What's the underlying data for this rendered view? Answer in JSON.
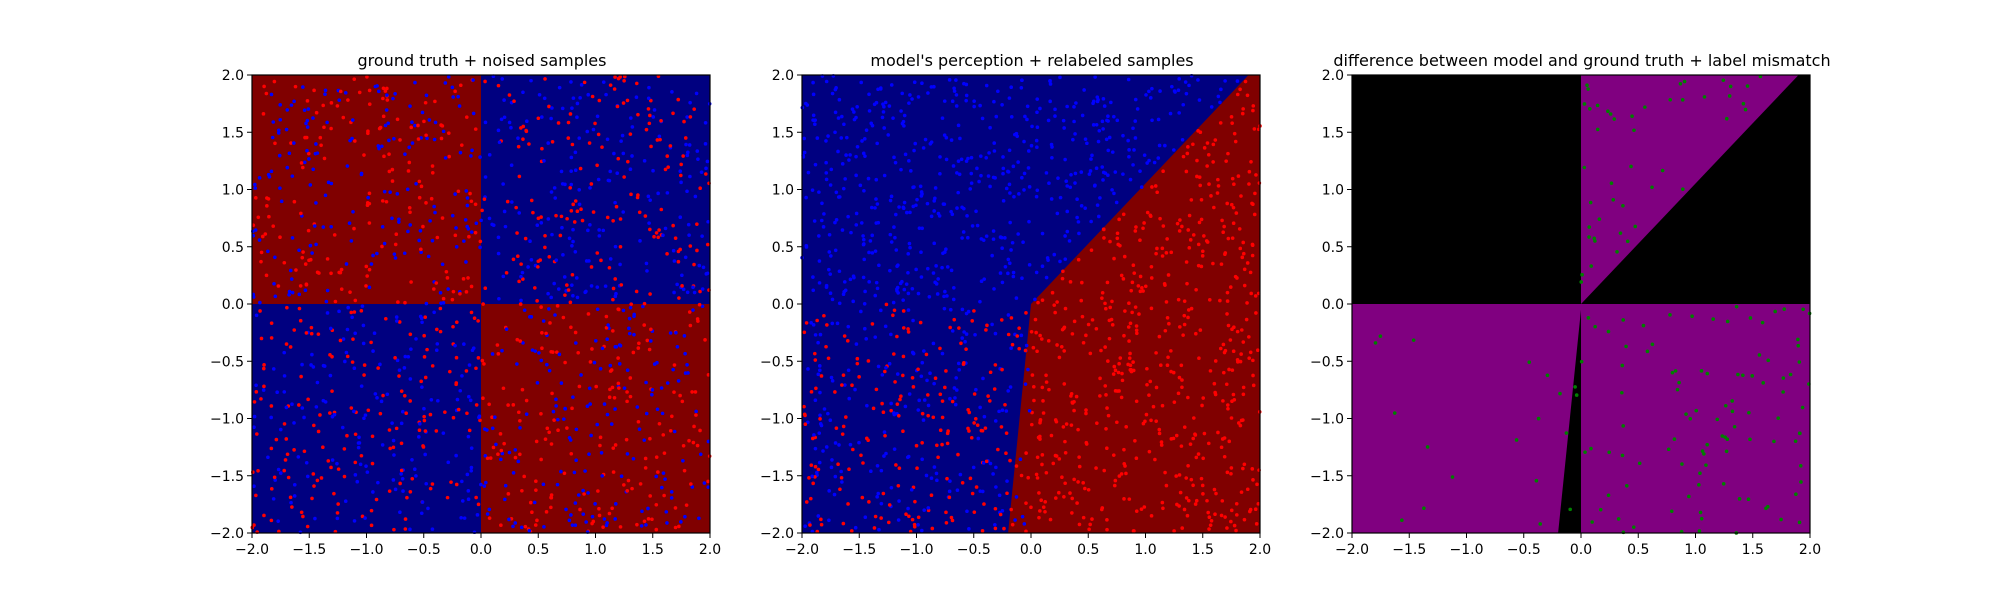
{
  "figure": {
    "background": "#ffffff"
  },
  "colors": {
    "ground_red": "#800000",
    "ground_blue": "#000080",
    "point_red": "#ff0000",
    "point_blue": "#0000ff",
    "diff_black": "#000000",
    "diff_purple": "#800080",
    "point_green": "#008000"
  },
  "chart_data": [
    {
      "type": "scatter",
      "title": "ground truth + noised samples",
      "xlabel": "",
      "ylabel": "",
      "xlim": [
        -2.0,
        2.0
      ],
      "ylim": [
        -2.0,
        2.0
      ],
      "xticks": [
        "−2.0",
        "−1.5",
        "−1.0",
        "−0.5",
        "0.0",
        "0.5",
        "1.0",
        "1.5",
        "2.0"
      ],
      "yticks": [
        "−2.0",
        "−1.5",
        "−1.0",
        "−0.5",
        "0.0",
        "0.5",
        "1.0",
        "1.5",
        "2.0"
      ],
      "grid": false,
      "background": "XOR quadrant map: red where x<0,y>0 and x>0,y<0; blue where x>0,y>0 and x<0,y<0",
      "series": [
        {
          "color": "#ff0000",
          "approx_count": 700,
          "distribution": "uniform over [-2,2]², mostly in blue quadrants (label red, noised)"
        },
        {
          "color": "#0000ff",
          "approx_count": 700,
          "distribution": "uniform over [-2,2]², mostly in red quadrants (label blue, noised)"
        }
      ]
    },
    {
      "type": "scatter",
      "title": "model's perception + relabeled samples",
      "xlabel": "",
      "ylabel": "",
      "xlim": [
        -2.0,
        2.0
      ],
      "ylim": [
        -2.0,
        2.0
      ],
      "xticks": [
        "−2.0",
        "−1.5",
        "−1.0",
        "−0.5",
        "0.0",
        "0.5",
        "1.0",
        "1.5",
        "2.0"
      ],
      "yticks": [
        "−2.0",
        "−1.5",
        "−1.0",
        "−0.5",
        "0.0",
        "0.5",
        "1.0",
        "1.5",
        "2.0"
      ],
      "grid": false,
      "background": "model decision regions: red region bounded by line from (-0.2,-2.0) to (0.0,0.0) then diagonal to (1.9,2.0); blue elsewhere",
      "boundary": [
        [
          -0.2,
          -2.0
        ],
        [
          0.0,
          0.0
        ],
        [
          1.9,
          2.0
        ]
      ],
      "series": [
        {
          "color": "#ff0000",
          "approx_count": 900,
          "distribution": "points inside red model region + lower-left quadrant"
        },
        {
          "color": "#0000ff",
          "approx_count": 600,
          "distribution": "points in upper-left blue region"
        }
      ]
    },
    {
      "type": "scatter",
      "title": "difference between model and ground truth + label mismatch",
      "xlabel": "",
      "ylabel": "",
      "xlim": [
        -2.0,
        2.0
      ],
      "ylim": [
        -2.0,
        2.0
      ],
      "xticks": [
        "−2.0",
        "−1.5",
        "−1.0",
        "−0.5",
        "0.0",
        "0.5",
        "1.0",
        "1.5",
        "2.0"
      ],
      "yticks": [
        "−2.0",
        "−1.5",
        "−1.0",
        "−0.5",
        "0.0",
        "0.5",
        "1.0",
        "1.5",
        "2.0"
      ],
      "grid": false,
      "background": "black where model agrees, purple where model differs from ground truth",
      "series": [
        {
          "color": "#008000",
          "approx_count": 350,
          "distribution": "mismatched samples in purple regions"
        }
      ]
    }
  ]
}
